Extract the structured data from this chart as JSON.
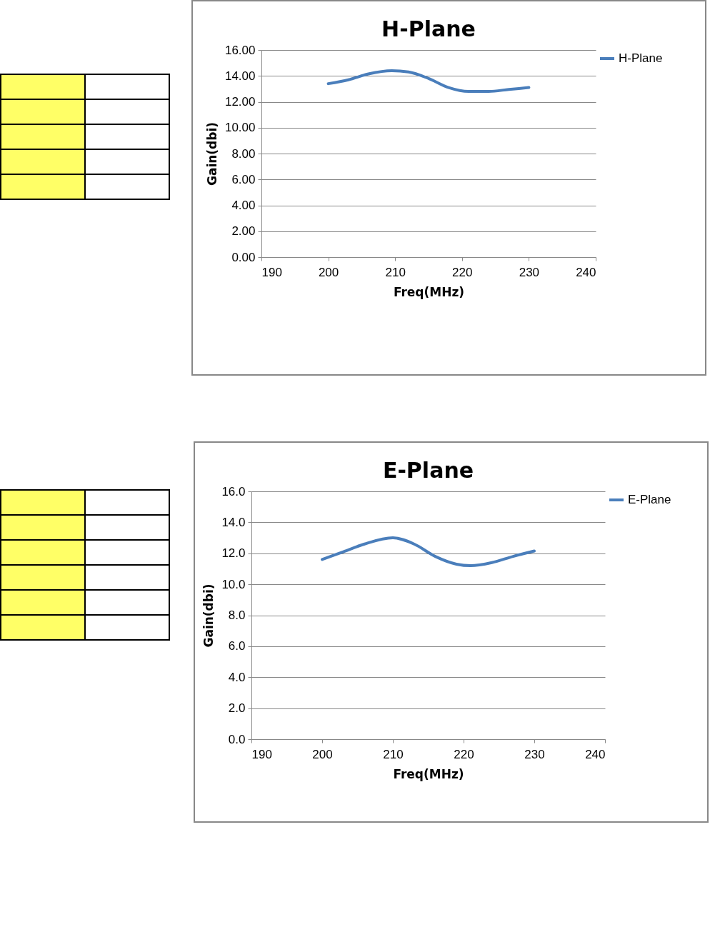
{
  "chart_data": [
    {
      "type": "line",
      "title": "H-Plane",
      "xlabel": "Freq(MHz)",
      "ylabel": "Gain(dbi)",
      "x": [
        200,
        203,
        206,
        209.5,
        212,
        215,
        218,
        221,
        224,
        227,
        230
      ],
      "series": [
        {
          "name": "H-Plane",
          "color": "#4a7ebb",
          "values": [
            13.4,
            13.7,
            14.15,
            14.4,
            14.3,
            13.8,
            13.1,
            12.8,
            12.8,
            12.95,
            13.1
          ]
        }
      ],
      "xlim": [
        190,
        240
      ],
      "xticks": [
        190,
        200,
        210,
        220,
        230,
        240
      ],
      "ylim": [
        0,
        16
      ],
      "yticks": [
        {
          "value": 0,
          "label": "0.00"
        },
        {
          "value": 2,
          "label": "2.00"
        },
        {
          "value": 4,
          "label": "4.00"
        },
        {
          "value": 6,
          "label": "6.00"
        },
        {
          "value": 8,
          "label": "8.00"
        },
        {
          "value": 10,
          "label": "10.00"
        },
        {
          "value": 12,
          "label": "12.00"
        },
        {
          "value": 14,
          "label": "14.00"
        },
        {
          "value": 16,
          "label": "16.00"
        }
      ],
      "grid": "y",
      "legend": "right"
    },
    {
      "type": "line",
      "title": "E-Plane",
      "xlabel": "Freq(MHz)",
      "ylabel": "Gain(dbi)",
      "x": [
        200,
        203,
        206,
        210,
        213,
        216,
        219,
        221,
        224,
        227,
        230
      ],
      "series": [
        {
          "name": "E-Plane",
          "color": "#4a7ebb",
          "values": [
            11.6,
            12.1,
            12.6,
            13.0,
            12.6,
            11.8,
            11.3,
            11.2,
            11.4,
            11.8,
            12.15
          ]
        }
      ],
      "xlim": [
        190,
        240
      ],
      "xticks": [
        190,
        200,
        210,
        220,
        230,
        240
      ],
      "ylim": [
        0,
        16
      ],
      "yticks": [
        {
          "value": 0,
          "label": "0.0"
        },
        {
          "value": 2,
          "label": "2.0"
        },
        {
          "value": 4,
          "label": "4.0"
        },
        {
          "value": 6,
          "label": "6.0"
        },
        {
          "value": 8,
          "label": "8.0"
        },
        {
          "value": 10,
          "label": "10.0"
        },
        {
          "value": 12,
          "label": "12.0"
        },
        {
          "value": 14,
          "label": "14.0"
        },
        {
          "value": 16,
          "label": "16.0"
        }
      ],
      "grid": "y",
      "legend": "right"
    }
  ]
}
